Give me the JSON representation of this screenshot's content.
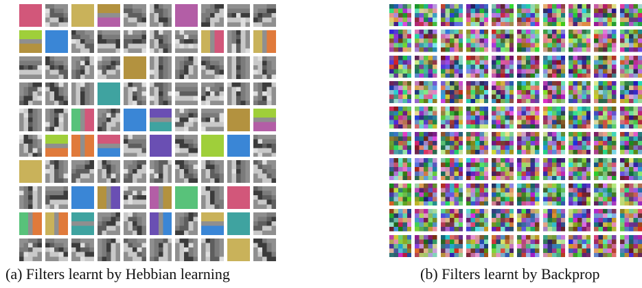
{
  "figure": {
    "panels": [
      {
        "id": "a",
        "caption": "(a) Filters learnt by Hebbian learning",
        "rows": 10,
        "cols": 10,
        "style": "hebbian",
        "palette": [
          "#8f8f8f",
          "#7b7b7b",
          "#a8a8a8",
          "#5e5e5e",
          "#c9c9c9",
          "#3c3c3c",
          "#dedede"
        ],
        "accent_colors": [
          "#d2577a",
          "#3fa3a0",
          "#6a4fb3",
          "#b3923f",
          "#9fcf3a",
          "#3a86d6",
          "#e07a3b",
          "#c9b25a",
          "#58c27a",
          "#b35ea6"
        ]
      },
      {
        "id": "b",
        "caption": "(b) Filters learnt by Backprop",
        "rows": 10,
        "cols": 10,
        "style": "backprop"
      }
    ]
  }
}
